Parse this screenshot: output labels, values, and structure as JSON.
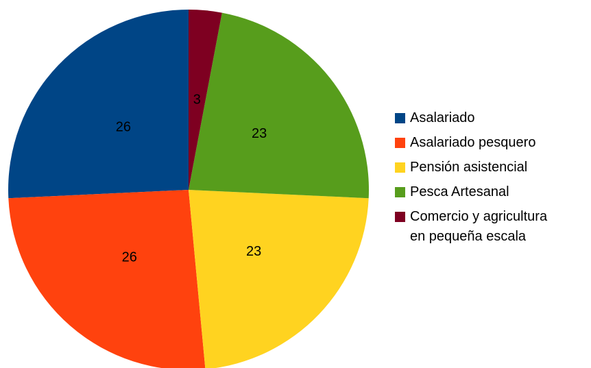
{
  "chart_data": {
    "type": "pie",
    "categories": [
      "Asalariado",
      "Asalariado pesquero",
      "Pensión asistencial",
      "Pesca Artesanal",
      "Comercio y agricultura en pequeña escala"
    ],
    "values": [
      26,
      26,
      23,
      23,
      3
    ],
    "colors": [
      "#004586",
      "#ff420e",
      "#ffd320",
      "#579d1c",
      "#7e0021"
    ],
    "legend": "right"
  }
}
